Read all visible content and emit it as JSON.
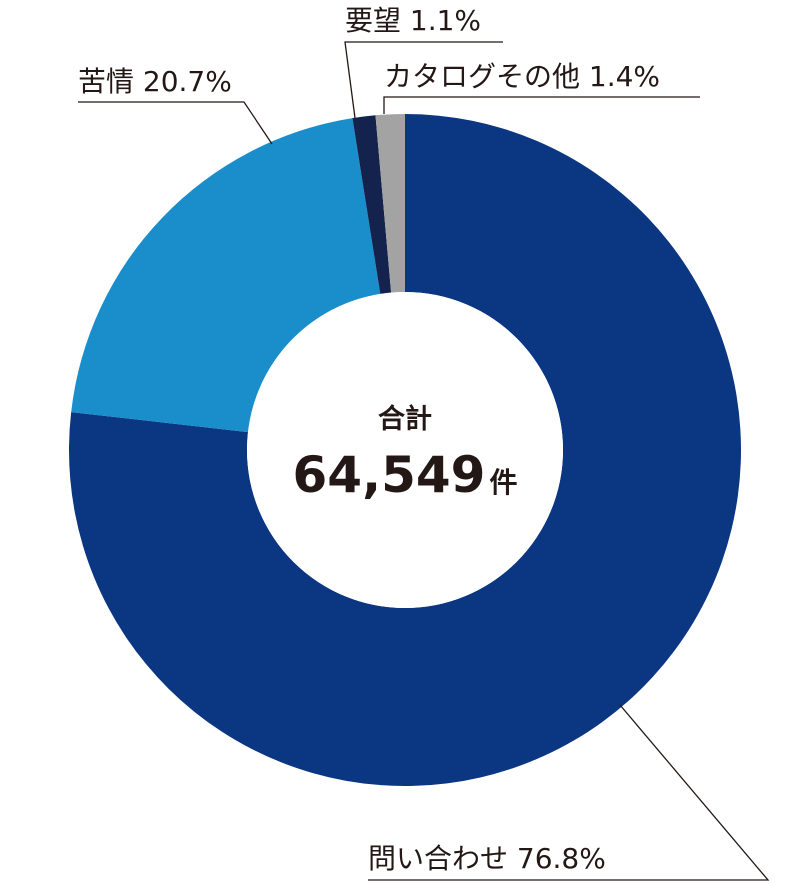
{
  "chart_data": {
    "type": "pie",
    "categories": [
      "問い合わせ",
      "苦情",
      "要望",
      "カタログその他"
    ],
    "values": [
      76.8,
      20.7,
      1.1,
      1.4
    ],
    "labels": [
      "問い合わせ 76.8%",
      "苦情 20.7%",
      "要望 1.1%",
      "カタログその他 1.4%"
    ],
    "colors": [
      "#0a3682",
      "#1a8ecb",
      "#13234d",
      "#a3a3a3"
    ],
    "center_title": "合計",
    "total": "64,549",
    "total_unit": "件"
  }
}
